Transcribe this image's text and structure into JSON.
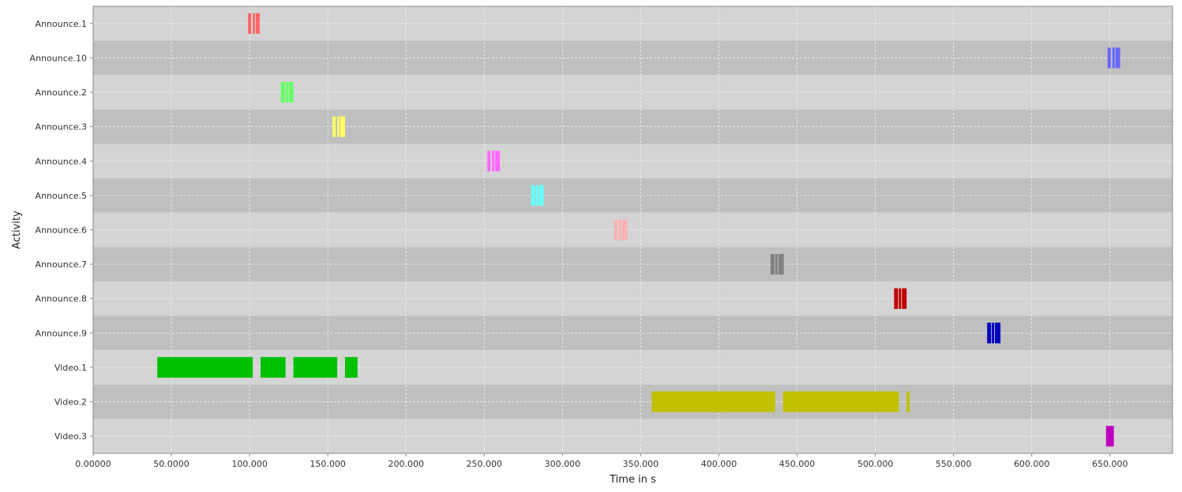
{
  "chart_data": {
    "type": "gantt",
    "title": "",
    "xlabel": "Time in s",
    "ylabel": "Activity",
    "xlim": [
      0,
      690
    ],
    "x_ticks": [
      {
        "value": 0,
        "label": "0.00000"
      },
      {
        "value": 50,
        "label": "50.0000"
      },
      {
        "value": 100,
        "label": "100.000"
      },
      {
        "value": 150,
        "label": "150.000"
      },
      {
        "value": 200,
        "label": "200.000"
      },
      {
        "value": 250,
        "label": "250.000"
      },
      {
        "value": 300,
        "label": "300.000"
      },
      {
        "value": 350,
        "label": "350.000"
      },
      {
        "value": 400,
        "label": "400.000"
      },
      {
        "value": 450,
        "label": "450.000"
      },
      {
        "value": 500,
        "label": "500.000"
      },
      {
        "value": 550,
        "label": "550.000"
      },
      {
        "value": 600,
        "label": "600.000"
      },
      {
        "value": 650,
        "label": "650.000"
      }
    ],
    "grid": true,
    "categories": [
      "Announce.1",
      "Announce.10",
      "Announce.2",
      "Announce.3",
      "Announce.4",
      "Announce.5",
      "Announce.6",
      "Announce.7",
      "Announce.8",
      "Announce.9",
      "Video.1",
      "Video.2",
      "Video.3"
    ],
    "series": [
      {
        "color": "#ff6666",
        "segments": [
          [
            99.0,
            101.0
          ],
          [
            102.0,
            103.5
          ],
          [
            104.0,
            106.5
          ]
        ]
      },
      {
        "color": "#6666ff",
        "segments": [
          [
            648.5,
            650.5
          ],
          [
            651.5,
            653.0
          ],
          [
            653.5,
            656.5
          ]
        ]
      },
      {
        "color": "#66ff66",
        "segments": [
          [
            120.0,
            122.5
          ],
          [
            123.0,
            124.5
          ],
          [
            125.0,
            128.0
          ]
        ]
      },
      {
        "color": "#ffff66",
        "segments": [
          [
            153.0,
            155.0
          ],
          [
            156.0,
            157.5
          ],
          [
            158.0,
            161.0
          ]
        ]
      },
      {
        "color": "#ff66ff",
        "segments": [
          [
            252.0,
            254.0
          ],
          [
            255.0,
            256.5
          ],
          [
            257.0,
            260.0
          ]
        ]
      },
      {
        "color": "#66ffff",
        "segments": [
          [
            280.0,
            282.5
          ],
          [
            283.0,
            284.5
          ],
          [
            285.0,
            288.0
          ]
        ]
      },
      {
        "color": "#ffb0b0",
        "segments": [
          [
            333.0,
            335.0
          ],
          [
            336.0,
            337.5
          ],
          [
            338.0,
            341.5
          ]
        ]
      },
      {
        "color": "#808080",
        "segments": [
          [
            433.0,
            435.5
          ],
          [
            436.0,
            437.5
          ],
          [
            438.0,
            441.5
          ]
        ]
      },
      {
        "color": "#c00000",
        "segments": [
          [
            512.0,
            514.5
          ],
          [
            515.0,
            516.5
          ],
          [
            517.0,
            520.0
          ]
        ]
      },
      {
        "color": "#0000c0",
        "segments": [
          [
            571.5,
            574.0
          ],
          [
            574.5,
            576.0
          ],
          [
            576.5,
            580.0
          ]
        ]
      },
      {
        "color": "#00c000",
        "segments": [
          [
            41.0,
            102.0
          ],
          [
            107.0,
            123.0
          ],
          [
            128.0,
            156.0
          ],
          [
            161.0,
            169.0
          ]
        ]
      },
      {
        "color": "#c0c000",
        "segments": [
          [
            357.0,
            436.0
          ],
          [
            441.0,
            515.0
          ],
          [
            520.0,
            522.0
          ]
        ]
      },
      {
        "color": "#c000c0",
        "segments": [
          [
            647.5,
            652.5
          ]
        ]
      }
    ]
  }
}
